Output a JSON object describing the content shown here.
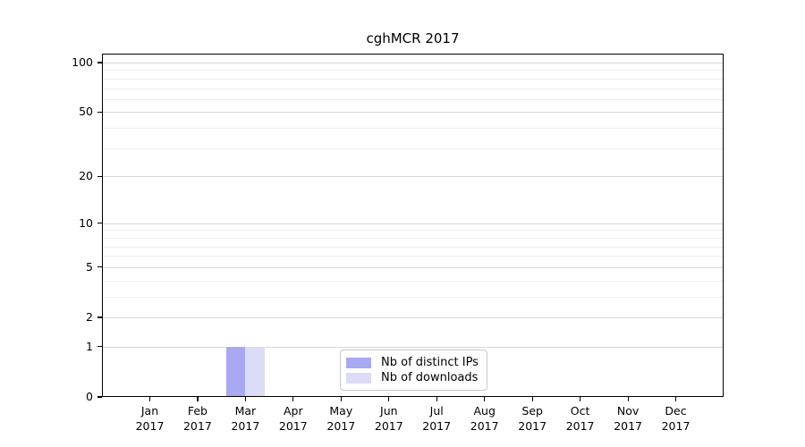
{
  "chart_data": {
    "type": "bar",
    "title": "cghMCR 2017",
    "categories": [
      "Jan",
      "Feb",
      "Mar",
      "Apr",
      "May",
      "Jun",
      "Jul",
      "Aug",
      "Sep",
      "Oct",
      "Nov",
      "Dec"
    ],
    "year": "2017",
    "series": [
      {
        "name": "Nb of distinct IPs",
        "color": "#a9a9f3",
        "values": [
          0,
          0,
          1,
          0,
          0,
          0,
          0,
          0,
          0,
          0,
          0,
          0
        ]
      },
      {
        "name": "Nb of downloads",
        "color": "#dcdcf8",
        "values": [
          0,
          0,
          1,
          0,
          0,
          0,
          0,
          0,
          0,
          0,
          0,
          0
        ]
      }
    ],
    "xlabel": "",
    "ylabel": "",
    "yscale": "log1p",
    "ylim": [
      0,
      113
    ],
    "yticks": [
      0,
      1,
      2,
      5,
      10,
      20,
      50,
      100
    ],
    "minor_yticks": [
      3,
      4,
      6,
      7,
      8,
      9,
      30,
      40,
      60,
      70,
      80,
      90
    ],
    "grid": true,
    "legend_position": "inside-bottom-center",
    "colors": {
      "background": "#ffffff",
      "frame": "#000000",
      "major_grid": "#d7d7d7",
      "minor_grid": "#ededed",
      "text": "#000000",
      "legend_border": "#c9c9c9"
    }
  }
}
